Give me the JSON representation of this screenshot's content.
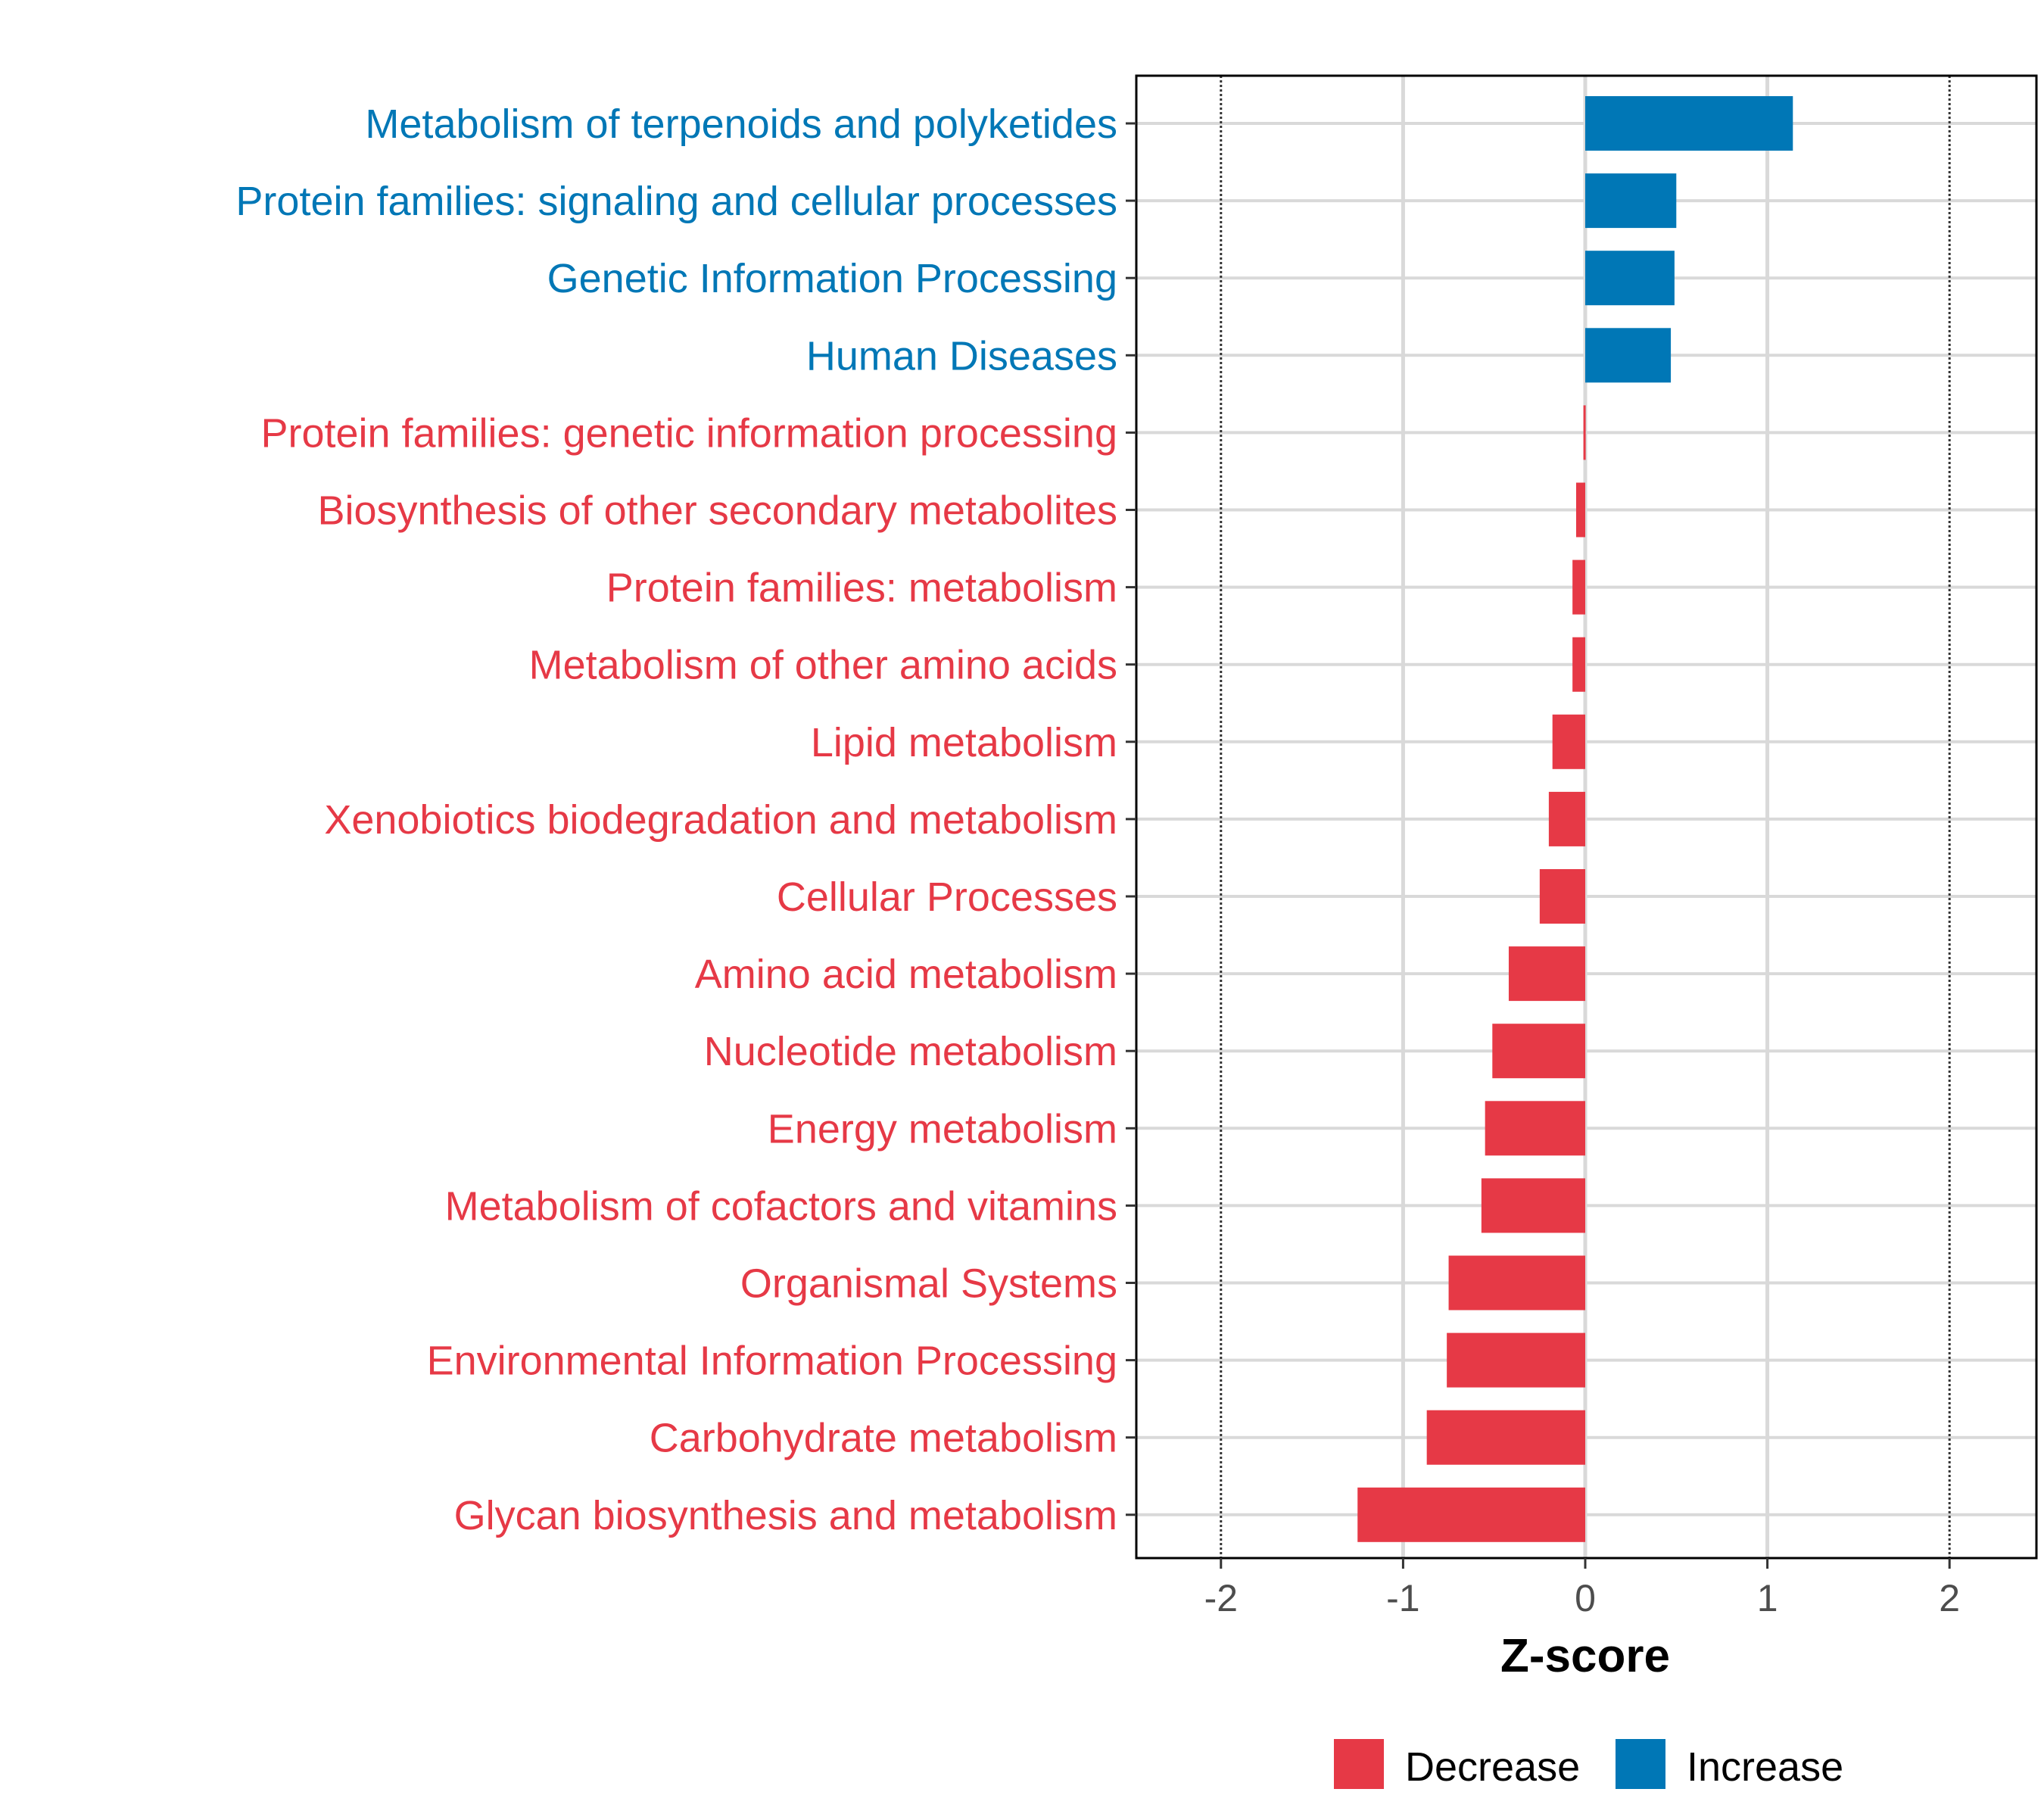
{
  "chart_data": {
    "type": "bar",
    "orientation": "horizontal",
    "title": "",
    "xlabel": "Z-score",
    "ylabel": "",
    "xlim": [
      -2.45,
      2.5
    ],
    "xticks": [
      -2,
      -1,
      0,
      1,
      2
    ],
    "xtick_labels": [
      "-2",
      "-1",
      "0",
      "1",
      "2"
    ],
    "reference_lines": [
      -2,
      2
    ],
    "grid": true,
    "legend": {
      "placement": "bottom",
      "entries": [
        {
          "label": "Decrease",
          "color": "#E63946"
        },
        {
          "label": "Increase",
          "color": "#0077B6"
        }
      ]
    },
    "categories": [
      "Metabolism of terpenoids and polyketides",
      "Protein families: signaling and cellular processes",
      "Genetic Information Processing",
      "Human Diseases",
      "Protein families: genetic information processing",
      "Biosynthesis of other secondary metabolites",
      "Protein families: metabolism",
      "Metabolism of other amino acids",
      "Lipid metabolism",
      "Xenobiotics biodegradation and metabolism",
      "Cellular Processes",
      "Amino acid metabolism",
      "Nucleotide metabolism",
      "Energy metabolism",
      "Metabolism of cofactors and vitamins",
      "Organismal Systems",
      "Environmental Information Processing",
      "Carbohydrate metabolism",
      "Glycan biosynthesis and metabolism"
    ],
    "values": [
      1.14,
      0.5,
      0.49,
      0.47,
      -0.01,
      -0.05,
      -0.07,
      -0.07,
      -0.18,
      -0.2,
      -0.25,
      -0.42,
      -0.51,
      -0.55,
      -0.57,
      -0.75,
      -0.76,
      -0.87,
      -1.25
    ],
    "colors": {
      "increase": "#0077B6",
      "decrease": "#E63946"
    }
  }
}
